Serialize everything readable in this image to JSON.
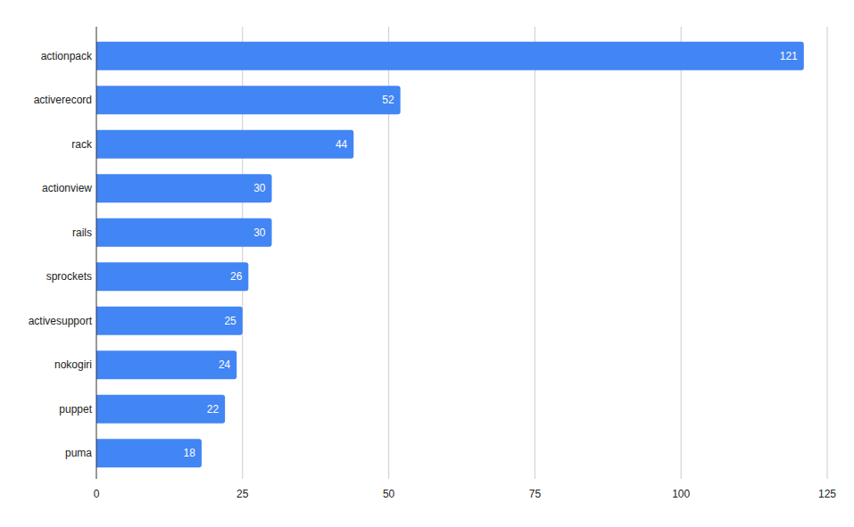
{
  "chart_data": {
    "type": "bar",
    "orientation": "horizontal",
    "categories": [
      "actionpack",
      "activerecord",
      "rack",
      "actionview",
      "rails",
      "sprockets",
      "activesupport",
      "nokogiri",
      "puppet",
      "puma"
    ],
    "values": [
      121,
      52,
      44,
      30,
      30,
      26,
      25,
      24,
      22,
      18
    ],
    "color": "#4285f4",
    "xlim": [
      0,
      125
    ],
    "xticks": [
      0,
      25,
      50,
      75,
      100,
      125
    ],
    "grid": true,
    "data_labels": true
  }
}
